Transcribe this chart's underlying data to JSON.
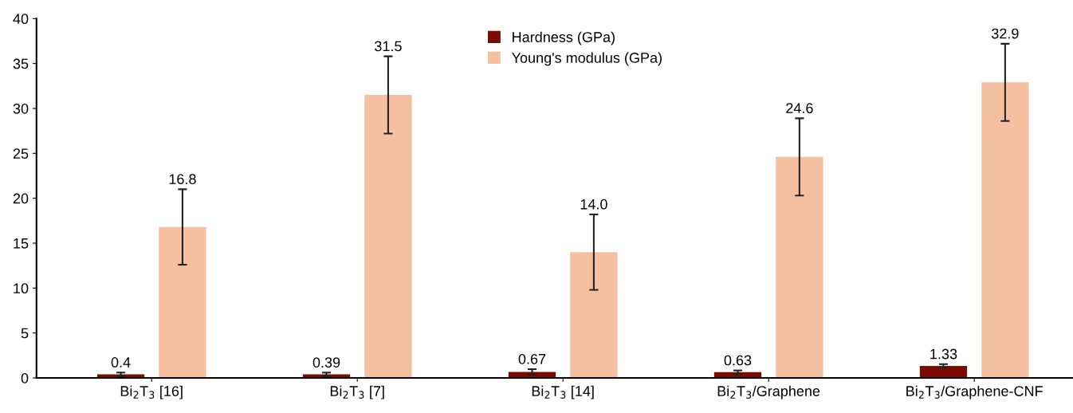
{
  "chart_data": {
    "type": "bar",
    "categories": [
      "Bi$_{2}$T$_{3}$ [16]",
      "Bi$_{2}$T$_{3}$ [7]",
      "Bi$_{2}$T$_{3}$ [14]",
      "Bi$_{2}$T$_{3}$/Graphene",
      "Bi$_{2}$T$_{3}$/Graphene-CNF"
    ],
    "series": [
      {
        "name": "Hardness (GPa)",
        "color": "#7b0c04",
        "values": [
          0.4,
          0.39,
          0.67,
          0.63,
          1.33
        ],
        "errors": [
          0.2,
          0.2,
          0.3,
          0.2,
          0.2
        ],
        "value_labels": [
          "0.4",
          "0.39",
          "0.67",
          "0.63",
          "1.33"
        ]
      },
      {
        "name": "Young's modulus (GPa)",
        "color": "#f5c0a0",
        "values": [
          16.8,
          31.5,
          14.0,
          24.6,
          32.9
        ],
        "errors": [
          4.2,
          4.3,
          4.2,
          4.3,
          4.3
        ],
        "value_labels": [
          "16.8",
          "31.5",
          "14.0",
          "24.6",
          "32.9"
        ]
      }
    ],
    "ylim": [
      0,
      40
    ],
    "yticks": [
      0,
      5,
      10,
      15,
      20,
      25,
      30,
      35,
      40
    ],
    "grid": false,
    "legend": "top"
  }
}
